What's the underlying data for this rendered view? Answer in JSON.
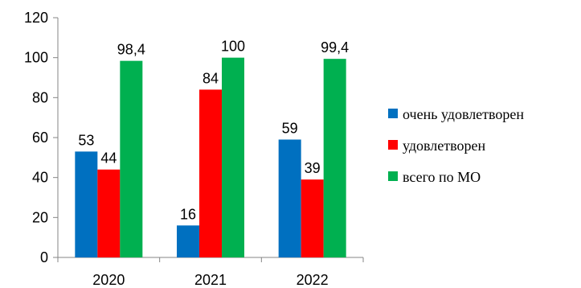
{
  "chart_data": {
    "type": "bar",
    "categories": [
      "2020",
      "2021",
      "2022"
    ],
    "series": [
      {
        "name": "очень удовлетворен",
        "values": [
          53,
          16,
          59
        ],
        "labels": [
          "53",
          "16",
          "59"
        ],
        "color": "#0070C0"
      },
      {
        "name": "удовлетворен",
        "values": [
          44,
          84,
          39
        ],
        "labels": [
          "44",
          "84",
          "39"
        ],
        "color": "#FF0000"
      },
      {
        "name": "всего по МО",
        "values": [
          98.4,
          100,
          99.4
        ],
        "labels": [
          "98,4",
          "100",
          "99,4"
        ],
        "color": "#00B050"
      }
    ],
    "ylim": [
      0,
      120
    ],
    "yticks": [
      0,
      20,
      40,
      60,
      80,
      100,
      120
    ],
    "grid": false,
    "legend_position": "right",
    "title": "",
    "xlabel": "",
    "ylabel": ""
  }
}
